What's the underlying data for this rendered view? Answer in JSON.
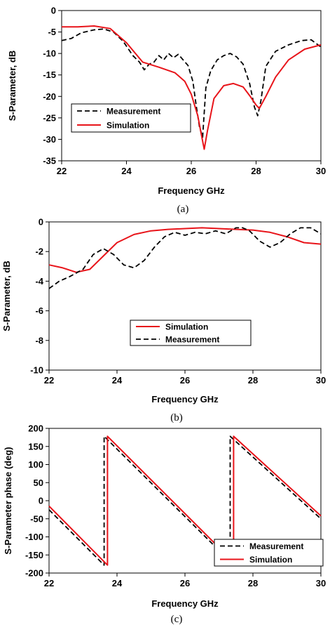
{
  "chart_data": [
    {
      "type": "line",
      "panel_label": "(a)",
      "xlabel": "Frequency GHz",
      "ylabel": "S-Parameter, dB",
      "xlim": [
        22,
        30
      ],
      "ylim": [
        -35,
        0
      ],
      "xticks": [
        22,
        24,
        26,
        28,
        30
      ],
      "yticks": [
        0,
        -5,
        -10,
        -15,
        -20,
        -25,
        -30,
        -35
      ],
      "grid": false,
      "legend_position": "lower-left",
      "series": [
        {
          "name": "Measurement",
          "color": "#000000",
          "dash": "dashed",
          "x": [
            22,
            22.3,
            22.6,
            23.0,
            23.3,
            23.6,
            23.9,
            24.2,
            24.4,
            24.55,
            24.7,
            24.85,
            25.0,
            25.15,
            25.3,
            25.45,
            25.6,
            25.75,
            25.9,
            26.05,
            26.15,
            26.25,
            26.35,
            26.45,
            26.6,
            26.8,
            27.0,
            27.2,
            27.4,
            27.6,
            27.8,
            27.95,
            28.05,
            28.15,
            28.3,
            28.6,
            29.0,
            29.4,
            29.7,
            30.0
          ],
          "y": [
            -7,
            -6.5,
            -5.2,
            -4.5,
            -4.3,
            -5.0,
            -7.2,
            -10.5,
            -12.0,
            -13.8,
            -12.5,
            -12.0,
            -10.5,
            -11.5,
            -10.0,
            -11.0,
            -10.2,
            -11.5,
            -12.8,
            -16.5,
            -22.0,
            -27.0,
            -29.5,
            -18.0,
            -14.0,
            -11.5,
            -10.5,
            -10.0,
            -10.8,
            -12.5,
            -17.0,
            -22.5,
            -24.5,
            -21.0,
            -13.0,
            -9.5,
            -8.0,
            -7.0,
            -6.8,
            -8.5
          ]
        },
        {
          "name": "Simulation",
          "color": "#e8141a",
          "dash": "solid",
          "x": [
            22,
            22.5,
            23.0,
            23.5,
            24.0,
            24.5,
            25.0,
            25.5,
            25.8,
            26.0,
            26.2,
            26.3,
            26.4,
            26.5,
            26.7,
            27.0,
            27.3,
            27.6,
            27.8,
            28.0,
            28.1,
            28.3,
            28.6,
            29.0,
            29.5,
            30.0
          ],
          "y": [
            -3.8,
            -3.8,
            -3.6,
            -4.2,
            -7.5,
            -12.0,
            -13.2,
            -14.5,
            -16.5,
            -19.5,
            -24.5,
            -28.5,
            -32.3,
            -28.0,
            -20.5,
            -17.5,
            -17.0,
            -17.8,
            -19.8,
            -22.0,
            -22.8,
            -20.0,
            -15.5,
            -11.5,
            -9.0,
            -8.0
          ]
        }
      ]
    },
    {
      "type": "line",
      "panel_label": "(b)",
      "xlabel": "Frequency GHz",
      "ylabel": "S-Parameter, dB",
      "xlim": [
        22,
        30
      ],
      "ylim": [
        -10,
        0
      ],
      "xticks": [
        22,
        24,
        26,
        28,
        30
      ],
      "yticks": [
        0,
        -2,
        -4,
        -6,
        -8,
        -10
      ],
      "grid": false,
      "legend_position": "center",
      "series": [
        {
          "name": "Simulation",
          "color": "#e8141a",
          "dash": "solid",
          "x": [
            22,
            22.4,
            22.8,
            23.2,
            23.6,
            24.0,
            24.5,
            25.0,
            25.5,
            26.0,
            26.5,
            27.0,
            27.5,
            28.0,
            28.5,
            29.0,
            29.5,
            30.0
          ],
          "y": [
            -2.9,
            -3.1,
            -3.4,
            -3.2,
            -2.3,
            -1.4,
            -0.85,
            -0.6,
            -0.5,
            -0.45,
            -0.4,
            -0.45,
            -0.5,
            -0.55,
            -0.7,
            -1.0,
            -1.4,
            -1.5
          ]
        },
        {
          "name": "Measurement",
          "color": "#000000",
          "dash": "dashed",
          "x": [
            22,
            22.3,
            22.6,
            23.0,
            23.3,
            23.6,
            23.9,
            24.2,
            24.5,
            24.8,
            25.1,
            25.4,
            25.7,
            26.0,
            26.3,
            26.6,
            26.9,
            27.2,
            27.5,
            27.7,
            27.9,
            28.2,
            28.5,
            28.8,
            29.1,
            29.4,
            29.7,
            30.0
          ],
          "y": [
            -4.5,
            -4.0,
            -3.7,
            -3.2,
            -2.2,
            -1.8,
            -2.2,
            -2.9,
            -3.1,
            -2.6,
            -1.7,
            -1.0,
            -0.7,
            -0.9,
            -0.7,
            -0.8,
            -0.6,
            -0.8,
            -0.4,
            -0.4,
            -0.6,
            -1.3,
            -1.7,
            -1.4,
            -0.8,
            -0.4,
            -0.4,
            -0.8
          ]
        }
      ]
    },
    {
      "type": "line",
      "panel_label": "(c)",
      "xlabel": "Frequency GHz",
      "ylabel": "S-Parameter phase (deg)",
      "xlim": [
        22,
        30
      ],
      "ylim": [
        -200,
        200
      ],
      "xticks": [
        22,
        24,
        26,
        28,
        30
      ],
      "yticks": [
        200,
        150,
        100,
        50,
        0,
        -50,
        -100,
        -150,
        -200
      ],
      "grid": false,
      "legend_position": "lower-right",
      "series": [
        {
          "name": "Measurement",
          "color": "#000000",
          "dash": "dashed",
          "x": [
            22,
            23.62,
            23.62,
            27.33,
            27.33,
            30.0
          ],
          "y": [
            -25,
            -178,
            178,
            -168,
            178,
            -50
          ]
        },
        {
          "name": "Simulation",
          "color": "#e8141a",
          "dash": "solid",
          "x": [
            22,
            23.72,
            23.72,
            27.43,
            27.43,
            30.0
          ],
          "y": [
            -15,
            -178,
            178,
            -170,
            178,
            -42
          ]
        }
      ]
    }
  ]
}
